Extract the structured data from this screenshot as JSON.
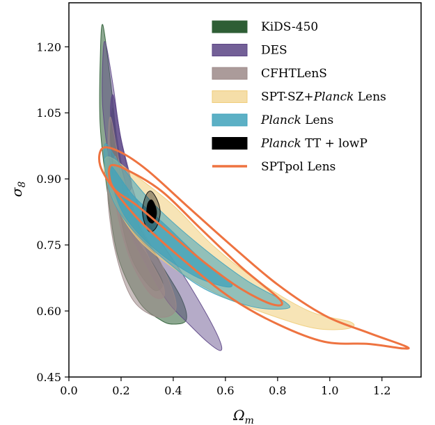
{
  "chart_data": {
    "type": "contour",
    "xlabel": "Ω",
    "xlabel_sub": "m",
    "ylabel": "σ",
    "ylabel_sub": "8",
    "xlim": [
      0.0,
      1.35
    ],
    "ylim": [
      0.45,
      1.3
    ],
    "xticks": [
      0.0,
      0.2,
      0.4,
      0.6,
      0.8,
      1.0,
      1.2
    ],
    "xtick_labels": [
      "0.0",
      "0.2",
      "0.4",
      "0.6",
      "0.8",
      "1.0",
      "1.2"
    ],
    "yticks": [
      0.45,
      0.6,
      0.75,
      0.9,
      1.05,
      1.2
    ],
    "ytick_labels": [
      "0.45",
      "0.60",
      "0.75",
      "0.90",
      "1.05",
      "1.20"
    ],
    "legend_position": "top-right",
    "series": [
      {
        "name": "KiDS-450",
        "style": "filled",
        "color": "#2e5e35",
        "contours": [
          {
            "level": "95%",
            "opacity": 0.55,
            "points": [
              [
                0.13,
                1.25
              ],
              [
                0.16,
                1.12
              ],
              [
                0.19,
                0.97
              ],
              [
                0.25,
                0.82
              ],
              [
                0.34,
                0.72
              ],
              [
                0.43,
                0.63
              ],
              [
                0.45,
                0.58
              ],
              [
                0.4,
                0.57
              ],
              [
                0.35,
                0.58
              ],
              [
                0.27,
                0.62
              ],
              [
                0.19,
                0.72
              ],
              [
                0.15,
                0.86
              ],
              [
                0.12,
                1.02
              ],
              [
                0.12,
                1.17
              ]
            ]
          },
          {
            "level": "68%",
            "opacity": 0.7,
            "points": [
              [
                0.17,
                1.06
              ],
              [
                0.19,
                0.93
              ],
              [
                0.25,
                0.78
              ],
              [
                0.33,
                0.7
              ],
              [
                0.36,
                0.66
              ],
              [
                0.32,
                0.65
              ],
              [
                0.24,
                0.72
              ],
              [
                0.19,
                0.84
              ],
              [
                0.16,
                0.98
              ]
            ]
          }
        ]
      },
      {
        "name": "DES",
        "style": "filled",
        "color": "#5b4485",
        "contours": [
          {
            "level": "95%",
            "opacity": 0.45,
            "points": [
              [
                0.14,
                1.21
              ],
              [
                0.17,
                1.11
              ],
              [
                0.2,
                0.99
              ],
              [
                0.26,
                0.85
              ],
              [
                0.35,
                0.76
              ],
              [
                0.44,
                0.68
              ],
              [
                0.53,
                0.59
              ],
              [
                0.58,
                0.53
              ],
              [
                0.58,
                0.51
              ],
              [
                0.53,
                0.53
              ],
              [
                0.46,
                0.57
              ],
              [
                0.38,
                0.62
              ],
              [
                0.31,
                0.69
              ],
              [
                0.22,
                0.8
              ],
              [
                0.16,
                0.93
              ],
              [
                0.13,
                1.06
              ],
              [
                0.13,
                1.17
              ]
            ]
          },
          {
            "level": "68%",
            "opacity": 0.75,
            "points": [
              [
                0.17,
                1.09
              ],
              [
                0.2,
                0.99
              ],
              [
                0.24,
                0.89
              ],
              [
                0.22,
                0.88
              ],
              [
                0.19,
                0.95
              ],
              [
                0.16,
                1.04
              ]
            ]
          }
        ]
      },
      {
        "name": "CFHTLenS",
        "style": "filled",
        "color": "#9c8988",
        "contours": [
          {
            "level": "95%",
            "opacity": 0.55,
            "points": [
              [
                0.16,
                1.04
              ],
              [
                0.2,
                0.92
              ],
              [
                0.27,
                0.8
              ],
              [
                0.36,
                0.7
              ],
              [
                0.41,
                0.62
              ],
              [
                0.39,
                0.59
              ],
              [
                0.32,
                0.59
              ],
              [
                0.24,
                0.63
              ],
              [
                0.18,
                0.73
              ],
              [
                0.15,
                0.85
              ],
              [
                0.15,
                0.96
              ]
            ]
          },
          {
            "level": "68%",
            "opacity": 0.75,
            "points": [
              [
                0.18,
                0.95
              ],
              [
                0.22,
                0.84
              ],
              [
                0.3,
                0.73
              ],
              [
                0.36,
                0.66
              ],
              [
                0.36,
                0.63
              ],
              [
                0.31,
                0.64
              ],
              [
                0.24,
                0.71
              ],
              [
                0.19,
                0.81
              ],
              [
                0.17,
                0.9
              ]
            ]
          }
        ]
      },
      {
        "name": "SPT-SZ+Planck Lens",
        "style": "filled",
        "color": "#f0cd7a",
        "contours": [
          {
            "level": "95%",
            "opacity": 0.55,
            "points": [
              [
                0.15,
                0.95
              ],
              [
                0.25,
                0.91
              ],
              [
                0.4,
                0.84
              ],
              [
                0.55,
                0.75
              ],
              [
                0.72,
                0.67
              ],
              [
                0.92,
                0.6
              ],
              [
                1.08,
                0.575
              ],
              [
                1.07,
                0.56
              ],
              [
                0.95,
                0.56
              ],
              [
                0.8,
                0.585
              ],
              [
                0.6,
                0.63
              ],
              [
                0.42,
                0.69
              ],
              [
                0.27,
                0.76
              ],
              [
                0.18,
                0.84
              ],
              [
                0.14,
                0.91
              ]
            ]
          }
        ]
      },
      {
        "name": "Planck Lens",
        "style": "filled",
        "color": "#3fa2bb",
        "contours": [
          {
            "level": "95%",
            "opacity": 0.55,
            "points": [
              [
                0.14,
                0.98
              ],
              [
                0.2,
                0.93
              ],
              [
                0.33,
                0.84
              ],
              [
                0.5,
                0.75
              ],
              [
                0.68,
                0.67
              ],
              [
                0.83,
                0.62
              ],
              [
                0.83,
                0.605
              ],
              [
                0.7,
                0.61
              ],
              [
                0.52,
                0.65
              ],
              [
                0.38,
                0.71
              ],
              [
                0.25,
                0.78
              ],
              [
                0.17,
                0.85
              ],
              [
                0.14,
                0.92
              ]
            ]
          },
          {
            "level": "68%",
            "opacity": 0.75,
            "points": [
              [
                0.16,
                0.93
              ],
              [
                0.25,
                0.86
              ],
              [
                0.38,
                0.79
              ],
              [
                0.52,
                0.71
              ],
              [
                0.62,
                0.665
              ],
              [
                0.6,
                0.655
              ],
              [
                0.48,
                0.68
              ],
              [
                0.33,
                0.74
              ],
              [
                0.22,
                0.81
              ],
              [
                0.17,
                0.88
              ]
            ]
          }
        ]
      },
      {
        "name": "Planck TT + lowP",
        "style": "filled",
        "color": "#000000",
        "contours": [
          {
            "level": "95%",
            "opacity": 0.35,
            "points": [
              [
                0.315,
                0.872
              ],
              [
                0.34,
                0.85
              ],
              [
                0.35,
                0.822
              ],
              [
                0.335,
                0.79
              ],
              [
                0.31,
                0.78
              ],
              [
                0.29,
                0.8
              ],
              [
                0.282,
                0.83
              ],
              [
                0.295,
                0.862
              ]
            ]
          },
          {
            "level": "68%",
            "opacity": 1.0,
            "points": [
              [
                0.318,
                0.852
              ],
              [
                0.333,
                0.835
              ],
              [
                0.335,
                0.817
              ],
              [
                0.322,
                0.8
              ],
              [
                0.305,
                0.805
              ],
              [
                0.298,
                0.822
              ],
              [
                0.303,
                0.845
              ]
            ]
          }
        ]
      },
      {
        "name": "SPTpol Lens",
        "style": "outline",
        "color": "#ee7340",
        "contours": [
          {
            "level": "95%",
            "opacity": 1.0,
            "points": [
              [
                0.13,
                0.97
              ],
              [
                0.2,
                0.96
              ],
              [
                0.3,
                0.92
              ],
              [
                0.45,
                0.84
              ],
              [
                0.62,
                0.75
              ],
              [
                0.8,
                0.66
              ],
              [
                0.98,
                0.59
              ],
              [
                1.15,
                0.55
              ],
              [
                1.29,
                0.52
              ],
              [
                1.28,
                0.515
              ],
              [
                1.15,
                0.525
              ],
              [
                0.98,
                0.53
              ],
              [
                0.8,
                0.57
              ],
              [
                0.62,
                0.63
              ],
              [
                0.45,
                0.71
              ],
              [
                0.28,
                0.8
              ],
              [
                0.18,
                0.87
              ],
              [
                0.12,
                0.93
              ]
            ]
          },
          {
            "level": "68%",
            "opacity": 1.0,
            "points": [
              [
                0.16,
                0.93
              ],
              [
                0.24,
                0.915
              ],
              [
                0.36,
                0.87
              ],
              [
                0.5,
                0.79
              ],
              [
                0.66,
                0.7
              ],
              [
                0.81,
                0.625
              ],
              [
                0.78,
                0.615
              ],
              [
                0.66,
                0.65
              ],
              [
                0.52,
                0.71
              ],
              [
                0.38,
                0.78
              ],
              [
                0.26,
                0.84
              ],
              [
                0.17,
                0.88
              ]
            ]
          }
        ]
      }
    ]
  }
}
